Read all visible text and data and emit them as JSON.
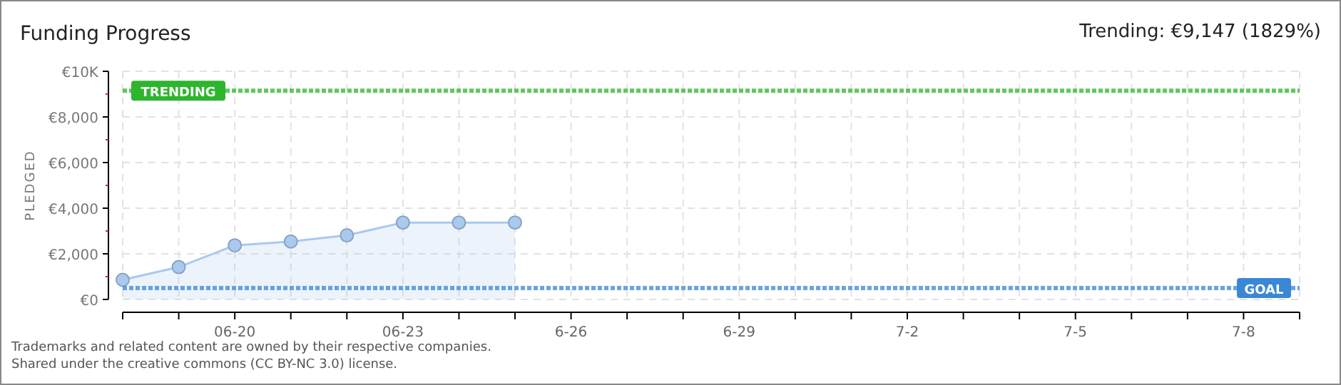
{
  "chart_data": {
    "type": "area",
    "title": "Funding Progress",
    "subtitle": "Trending: €9,147 (1829%)",
    "ylabel": "PLEDGED",
    "x": [
      "--06-18",
      "--06-19",
      "--06-20",
      "--06-21",
      "--06-22",
      "--06-23",
      "--06-24",
      "--06-25"
    ],
    "series": [
      {
        "color": "#a9c9ef",
        "values": [
          860,
          1420,
          2370,
          2540,
          2810,
          3370,
          3370,
          3370
        ]
      }
    ],
    "xlim": [
      "--06-18",
      "--07-09"
    ],
    "xticks": [
      {
        "value": "--06-18",
        "label": null
      },
      {
        "value": "--06-19",
        "label": null
      },
      {
        "value": "--06-20",
        "label": "06-20"
      },
      {
        "value": "--06-21",
        "label": null
      },
      {
        "value": "--06-22",
        "label": null
      },
      {
        "value": "--06-23",
        "label": "06-23"
      },
      {
        "value": "--06-24",
        "label": null
      },
      {
        "value": "--06-25",
        "label": null
      },
      {
        "value": "--06-26",
        "label": "6-26"
      },
      {
        "value": "--06-27",
        "label": null
      },
      {
        "value": "--06-28",
        "label": null
      },
      {
        "value": "--06-29",
        "label": "6-29"
      },
      {
        "value": "--06-30",
        "label": null
      },
      {
        "value": "--07-01",
        "label": null
      },
      {
        "value": "--07-02",
        "label": "7-2"
      },
      {
        "value": "--07-03",
        "label": null
      },
      {
        "value": "--07-04",
        "label": null
      },
      {
        "value": "--07-05",
        "label": "7-5"
      },
      {
        "value": "--07-06",
        "label": null
      },
      {
        "value": "--07-07",
        "label": null
      },
      {
        "value": "--07-08",
        "label": "7-8"
      },
      {
        "value": "--07-09",
        "label": null
      }
    ],
    "ylim": [
      0,
      10000
    ],
    "yticks": [
      {
        "value": 0,
        "label": "€0"
      },
      {
        "value": 1000,
        "label": null
      },
      {
        "value": 2000,
        "label": "€2,000"
      },
      {
        "value": 3000,
        "label": null
      },
      {
        "value": 4000,
        "label": "€4,000"
      },
      {
        "value": 5000,
        "label": null
      },
      {
        "value": 6000,
        "label": "€6,000"
      },
      {
        "value": 7000,
        "label": null
      },
      {
        "value": 8000,
        "label": "€8,000"
      },
      {
        "value": 9000,
        "label": null
      },
      {
        "value": 10000,
        "label": "€10K"
      }
    ],
    "grid": true,
    "marker": "circle",
    "ref_lines": [
      {
        "axis": "y",
        "value": 9147,
        "label": "TRENDING",
        "color": "#2db52d"
      },
      {
        "axis": "y",
        "value": 500,
        "label": "GOAL",
        "color": "#3a87d6"
      }
    ],
    "annotations": [
      "Trademarks and related content are owned by their respective companies.",
      "Shared under the creative commons (CC BY-NC 3.0) license."
    ]
  }
}
